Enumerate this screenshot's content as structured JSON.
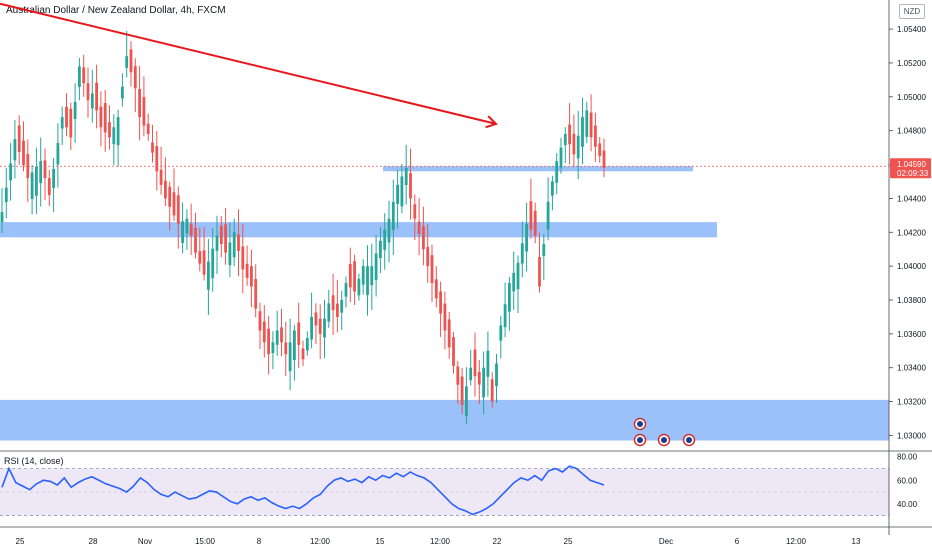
{
  "header": {
    "title": "Australian Dollar / New Zealand Dollar, 4h, FXCM",
    "currency": "NZD"
  },
  "colors": {
    "up": "#26a69a",
    "down": "#ef5350",
    "zone": "#90baf9",
    "trendline": "#e8161c",
    "rsi_line": "#2962ff",
    "rsi_band": "#ede7f6"
  },
  "icons": [
    "event-flag-icon",
    "event-flag-icon",
    "event-flag-icon",
    "event-flag-icon"
  ],
  "chart_data": [
    {
      "type": "candlestick",
      "title": "Australian Dollar / New Zealand Dollar, 4h, FXCM",
      "ylim": [
        1.0292,
        1.0556
      ],
      "y_ticks": [
        1.054,
        1.052,
        1.05,
        1.048,
        1.046,
        1.044,
        1.042,
        1.04,
        1.038,
        1.036,
        1.034,
        1.032,
        1.03
      ],
      "y_tick_labels": [
        "1.05400",
        "1.05200",
        "1.05000",
        "1.04800",
        "1.04600",
        "1.04400",
        "1.04200",
        "1.04000",
        "1.03800",
        "1.03600",
        "1.03400",
        "1.03200",
        "1.03000"
      ],
      "x_tick_labels": [
        "25",
        "28",
        "Nov",
        "15:00",
        "8",
        "12:00",
        "15",
        "12:00",
        "22",
        "25",
        "Dec",
        "6",
        "12:00",
        "13"
      ],
      "last_price": "1.04590",
      "countdown": "02:09:33",
      "anchors": [
        [
          0,
          1.0432
        ],
        [
          3,
          1.0475
        ],
        [
          6,
          1.0452
        ],
        [
          9,
          1.0462
        ],
        [
          11,
          1.0442
        ],
        [
          14,
          1.0488
        ],
        [
          16,
          1.0476
        ],
        [
          18,
          1.0518
        ],
        [
          20,
          1.0498
        ],
        [
          21,
          1.0502
        ],
        [
          23,
          1.0482
        ],
        [
          25,
          1.0476
        ],
        [
          27,
          1.0488
        ],
        [
          29,
          1.0524
        ],
        [
          31,
          1.0505
        ],
        [
          32,
          1.0488
        ],
        [
          34,
          1.0478
        ],
        [
          36,
          1.0456
        ],
        [
          38,
          1.044
        ],
        [
          41,
          1.0425
        ],
        [
          43,
          1.0428
        ],
        [
          45,
          1.0408
        ],
        [
          47,
          1.0395
        ],
        [
          50,
          1.0418
        ],
        [
          52,
          1.0408
        ],
        [
          54,
          1.042
        ],
        [
          56,
          1.0398
        ],
        [
          58,
          1.0388
        ],
        [
          60,
          1.0362
        ],
        [
          62,
          1.0348
        ],
        [
          64,
          1.0362
        ],
        [
          66,
          1.0348
        ],
        [
          68,
          1.0362
        ],
        [
          70,
          1.0345
        ],
        [
          72,
          1.037
        ],
        [
          74,
          1.036
        ],
        [
          76,
          1.0378
        ],
        [
          78,
          1.037
        ],
        [
          80,
          1.039
        ],
        [
          82,
          1.0385
        ],
        [
          84,
          1.04
        ],
        [
          86,
          1.04
        ],
        [
          88,
          1.0415
        ],
        [
          90,
          1.0428
        ],
        [
          92,
          1.0448
        ],
        [
          94,
          1.0458
        ],
        [
          95,
          1.044
        ],
        [
          96,
          1.0428
        ],
        [
          98,
          1.041
        ],
        [
          100,
          1.039
        ],
        [
          102,
          1.0372
        ],
        [
          104,
          1.0352
        ],
        [
          106,
          1.033
        ],
        [
          107,
          1.0318
        ],
        [
          109,
          1.034
        ],
        [
          111,
          1.033
        ],
        [
          113,
          1.035
        ],
        [
          114,
          1.032
        ],
        [
          116,
          1.0365
        ],
        [
          118,
          1.039
        ],
        [
          120,
          1.0402
        ],
        [
          122,
          1.0425
        ],
        [
          124,
          1.0418
        ],
        [
          125,
          1.0388
        ],
        [
          127,
          1.0438
        ],
        [
          129,
          1.0462
        ],
        [
          131,
          1.0478
        ],
        [
          133,
          1.0466
        ],
        [
          135,
          1.0488
        ],
        [
          136,
          1.0492
        ],
        [
          137,
          1.0476
        ],
        [
          139,
          1.0465
        ],
        [
          140,
          1.0458
        ]
      ],
      "zones": [
        {
          "from": 1.0426,
          "to": 1.0417
        },
        {
          "from": 1.0321,
          "to": 1.0297
        },
        {
          "from": 1.0459,
          "to": 1.0456
        }
      ],
      "trendline": {
        "from_price": 1.0555,
        "to_price": 1.0484
      }
    },
    {
      "type": "line",
      "title": "RSI (14, close)",
      "ylim": [
        22,
        84
      ],
      "y_ticks": [
        80,
        60,
        40
      ],
      "y_tick_labels": [
        "80.00",
        "60.00",
        "40.00"
      ],
      "band": [
        30,
        70
      ],
      "mid": 50,
      "values": [
        54,
        70,
        58,
        55,
        52,
        57,
        60,
        59,
        56,
        62,
        54,
        58,
        61,
        63,
        60,
        57,
        55,
        53,
        50,
        55,
        62,
        58,
        52,
        48,
        46,
        50,
        47,
        44,
        45,
        48,
        51,
        50,
        46,
        42,
        40,
        44,
        46,
        43,
        45,
        41,
        38,
        36,
        38,
        36,
        40,
        45,
        48,
        55,
        60,
        62,
        59,
        61,
        58,
        63,
        60,
        64,
        62,
        66,
        63,
        67,
        64,
        62,
        58,
        52,
        46,
        40,
        36,
        34,
        31,
        33,
        36,
        40,
        46,
        52,
        58,
        62,
        60,
        64,
        60,
        68,
        70,
        67,
        72,
        70,
        65,
        60,
        58,
        56
      ]
    }
  ]
}
